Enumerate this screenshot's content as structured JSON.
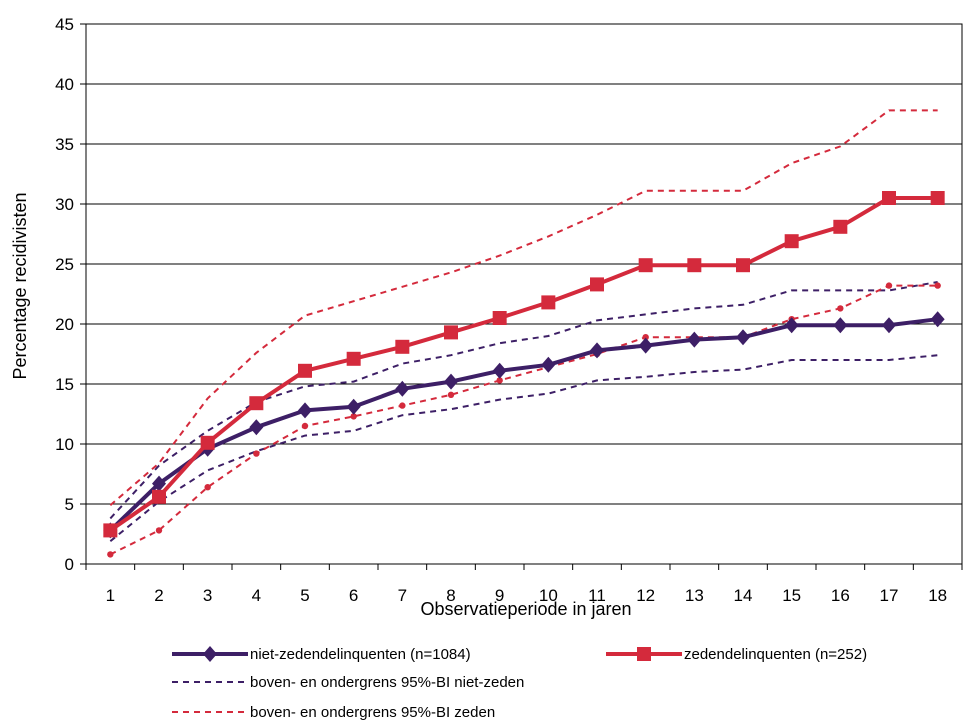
{
  "chart_data": {
    "type": "line",
    "xlabel": "Observatieperiode in jaren",
    "ylabel": "Percentage recidivisten",
    "ylim": [
      0,
      45
    ],
    "yticks": [
      0,
      5,
      10,
      15,
      20,
      25,
      30,
      35,
      40,
      45
    ],
    "categories": [
      "1",
      "2",
      "3",
      "4",
      "5",
      "6",
      "7",
      "8",
      "9",
      "10",
      "11",
      "12",
      "13",
      "14",
      "15",
      "16",
      "17",
      "18"
    ],
    "grid": "horizontal",
    "legend_position": "bottom",
    "series": [
      {
        "name": "niet-zedendelinquenten (n=1084)",
        "color": "#3d1f66",
        "style": "solid",
        "marker": "diamond",
        "values": [
          2.8,
          6.7,
          9.6,
          11.4,
          12.8,
          13.1,
          14.6,
          15.2,
          16.1,
          16.6,
          17.8,
          18.2,
          18.7,
          18.9,
          19.9,
          19.9,
          19.9,
          20.4
        ]
      },
      {
        "name": "zedendelinquenten (n=252)",
        "color": "#d42a3c",
        "style": "solid",
        "marker": "square",
        "values": [
          2.8,
          5.6,
          10.1,
          13.4,
          16.1,
          17.1,
          18.1,
          19.3,
          20.5,
          21.8,
          23.3,
          24.9,
          24.9,
          24.9,
          26.9,
          28.1,
          30.5,
          30.5
        ]
      },
      {
        "name": "boven- en ondergrens 95%-BI niet-zeden",
        "color": "#3d1f66",
        "style": "dashed",
        "marker": "none",
        "bounds": [
          {
            "values": [
              3.8,
              8.2,
              11.1,
              13.5,
              14.8,
              15.2,
              16.7,
              17.4,
              18.4,
              19.0,
              20.3,
              20.8,
              21.3,
              21.6,
              22.8,
              22.8,
              22.8,
              23.5
            ]
          },
          {
            "values": [
              1.9,
              5.2,
              7.8,
              9.4,
              10.7,
              11.1,
              12.4,
              12.9,
              13.7,
              14.2,
              15.3,
              15.6,
              16.0,
              16.2,
              17.0,
              17.0,
              17.0,
              17.4
            ]
          }
        ]
      },
      {
        "name": "boven- en ondergrens 95%-BI zeden",
        "color": "#d42a3c",
        "style": "dashed",
        "marker": "dot",
        "bounds": [
          {
            "values": [
              4.9,
              8.4,
              13.8,
              17.6,
              20.7,
              21.9,
              23.1,
              24.3,
              25.7,
              27.3,
              29.1,
              31.1,
              31.1,
              31.1,
              33.4,
              34.8,
              37.8,
              37.8
            ]
          },
          {
            "values": [
              0.8,
              2.8,
              6.4,
              9.2,
              11.5,
              12.3,
              13.2,
              14.1,
              15.3,
              16.4,
              17.5,
              18.9,
              18.9,
              18.9,
              20.4,
              21.3,
              23.2,
              23.2
            ]
          }
        ]
      }
    ]
  }
}
